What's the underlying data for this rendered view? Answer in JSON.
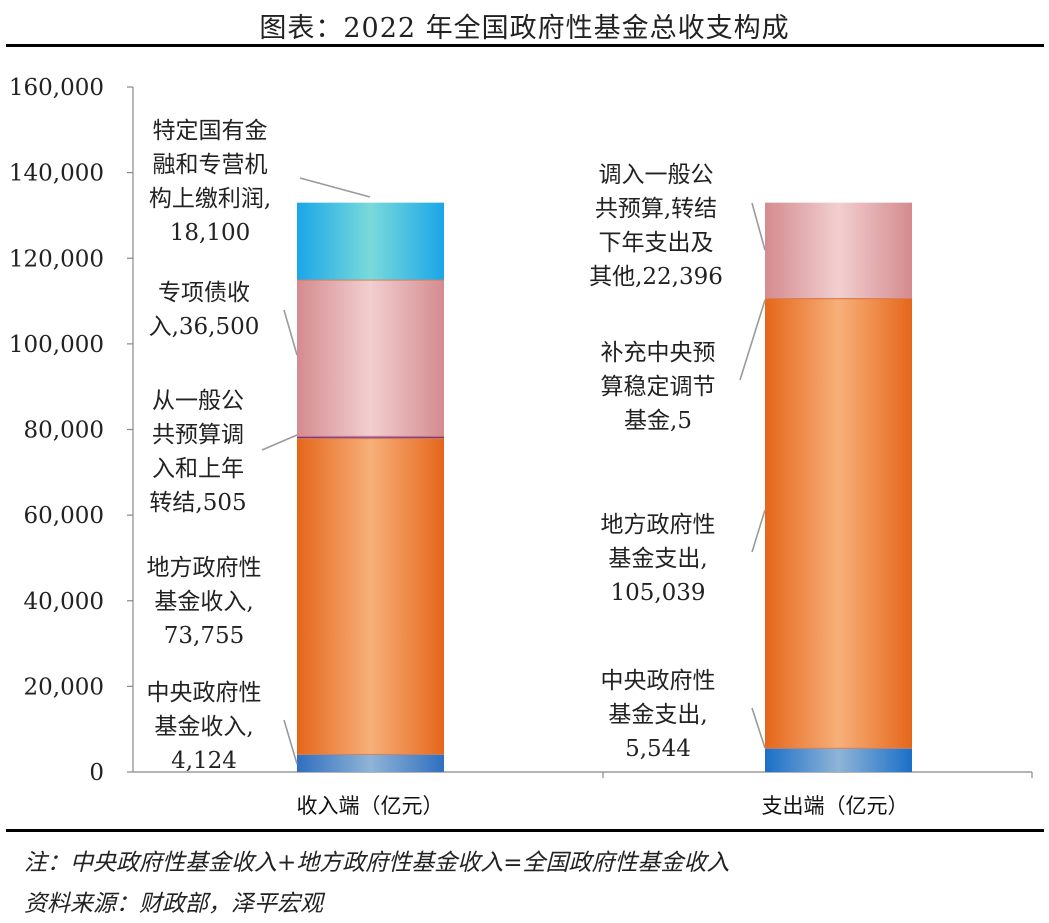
{
  "title": "图表：2022 年全国政府性基金总收支构成",
  "chart_data": {
    "type": "bar",
    "stacked": true,
    "categories": [
      "收入端（亿元）",
      "支出端（亿元）"
    ],
    "y_ticks": [
      "0",
      "20,000",
      "40,000",
      "60,000",
      "80,000",
      "100,000",
      "120,000",
      "140,000",
      "160,000"
    ],
    "ylim": [
      0,
      160000
    ],
    "grid": false,
    "bars": [
      {
        "category": "收入端（亿元）",
        "segments": [
          {
            "value": 4124,
            "label": [
              "中央政府性",
              "基金收入,",
              "4,124"
            ],
            "color_top": "#2f6fc0",
            "color_mid": "#8fb4d6"
          },
          {
            "value": 73755,
            "label": [
              "地方政府性",
              "基金收入,",
              "73,755"
            ],
            "color_top": "#e5661a",
            "color_mid": "#f7b07a"
          },
          {
            "value": 505,
            "label": [
              "从一般公",
              "共预算调",
              "入和上年",
              "转结,505"
            ],
            "color_top": "#6a2fa0",
            "color_mid": "#8e53c4"
          },
          {
            "value": 36500,
            "label": [
              "专项债收",
              "入,36,500"
            ],
            "color_top": "#d48b8f",
            "color_mid": "#f2cfd0"
          },
          {
            "value": 18100,
            "label": [
              "特定国有金",
              "融和专营机",
              "构上缴利润,",
              "18,100"
            ],
            "color_top": "#1aa6e8",
            "color_mid": "#7adada"
          }
        ]
      },
      {
        "category": "支出端（亿元）",
        "segments": [
          {
            "value": 5544,
            "label": [
              "中央政府性",
              "基金支出,",
              "5,544"
            ],
            "color_top": "#1a6fc8",
            "color_mid": "#8fb4d6"
          },
          {
            "value": 105039,
            "label": [
              "地方政府性",
              "基金支出,",
              "105,039"
            ],
            "color_top": "#e5661a",
            "color_mid": "#f7b07a"
          },
          {
            "value": 5,
            "label": [
              "补充中央预",
              "算稳定调节",
              "基金,5"
            ],
            "color_top": "#e5661a",
            "color_mid": "#e5661a"
          },
          {
            "value": 22396,
            "label": [
              "调入一般公",
              "共预算,转结",
              "下年支出及",
              "其他,22,396"
            ],
            "color_top": "#d48b8f",
            "color_mid": "#f2cfd0"
          }
        ]
      }
    ]
  },
  "notes": {
    "note": "注：中央政府性基金收入+地方政府性基金收入=全国政府性基金收入",
    "source": "资料来源：财政部，泽平宏观"
  }
}
